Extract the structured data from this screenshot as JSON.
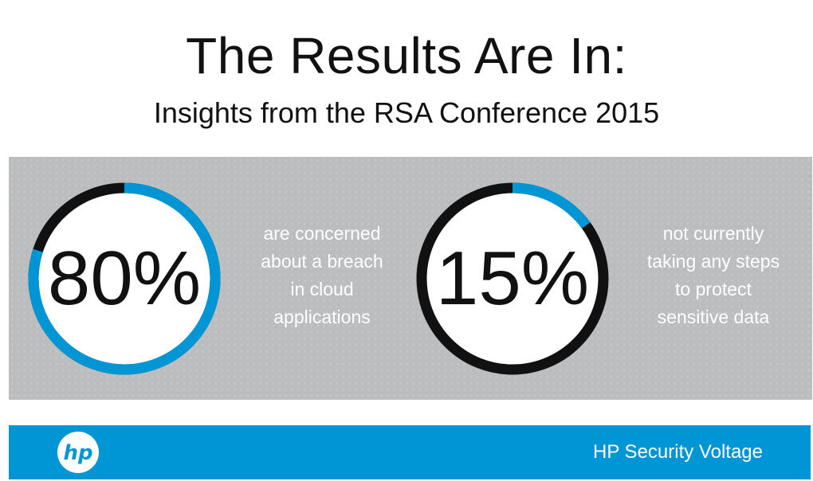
{
  "header": {
    "title": "The Results Are In:",
    "subtitle": "Insights from the RSA Conference 2015"
  },
  "stats": [
    {
      "value": "80%",
      "percent": 80,
      "description": [
        "are concerned",
        "about a breach",
        "in cloud",
        "applications"
      ]
    },
    {
      "value": "15%",
      "percent": 15,
      "description": [
        "not currently",
        "taking any steps",
        "to protect",
        "sensitive data"
      ]
    }
  ],
  "footer": {
    "logo": "hp-logo-icon",
    "brand": "HP Security Voltage"
  },
  "colors": {
    "accent": "#0096d6",
    "ring_track": "#111111",
    "panel": "#bcbdbf"
  }
}
